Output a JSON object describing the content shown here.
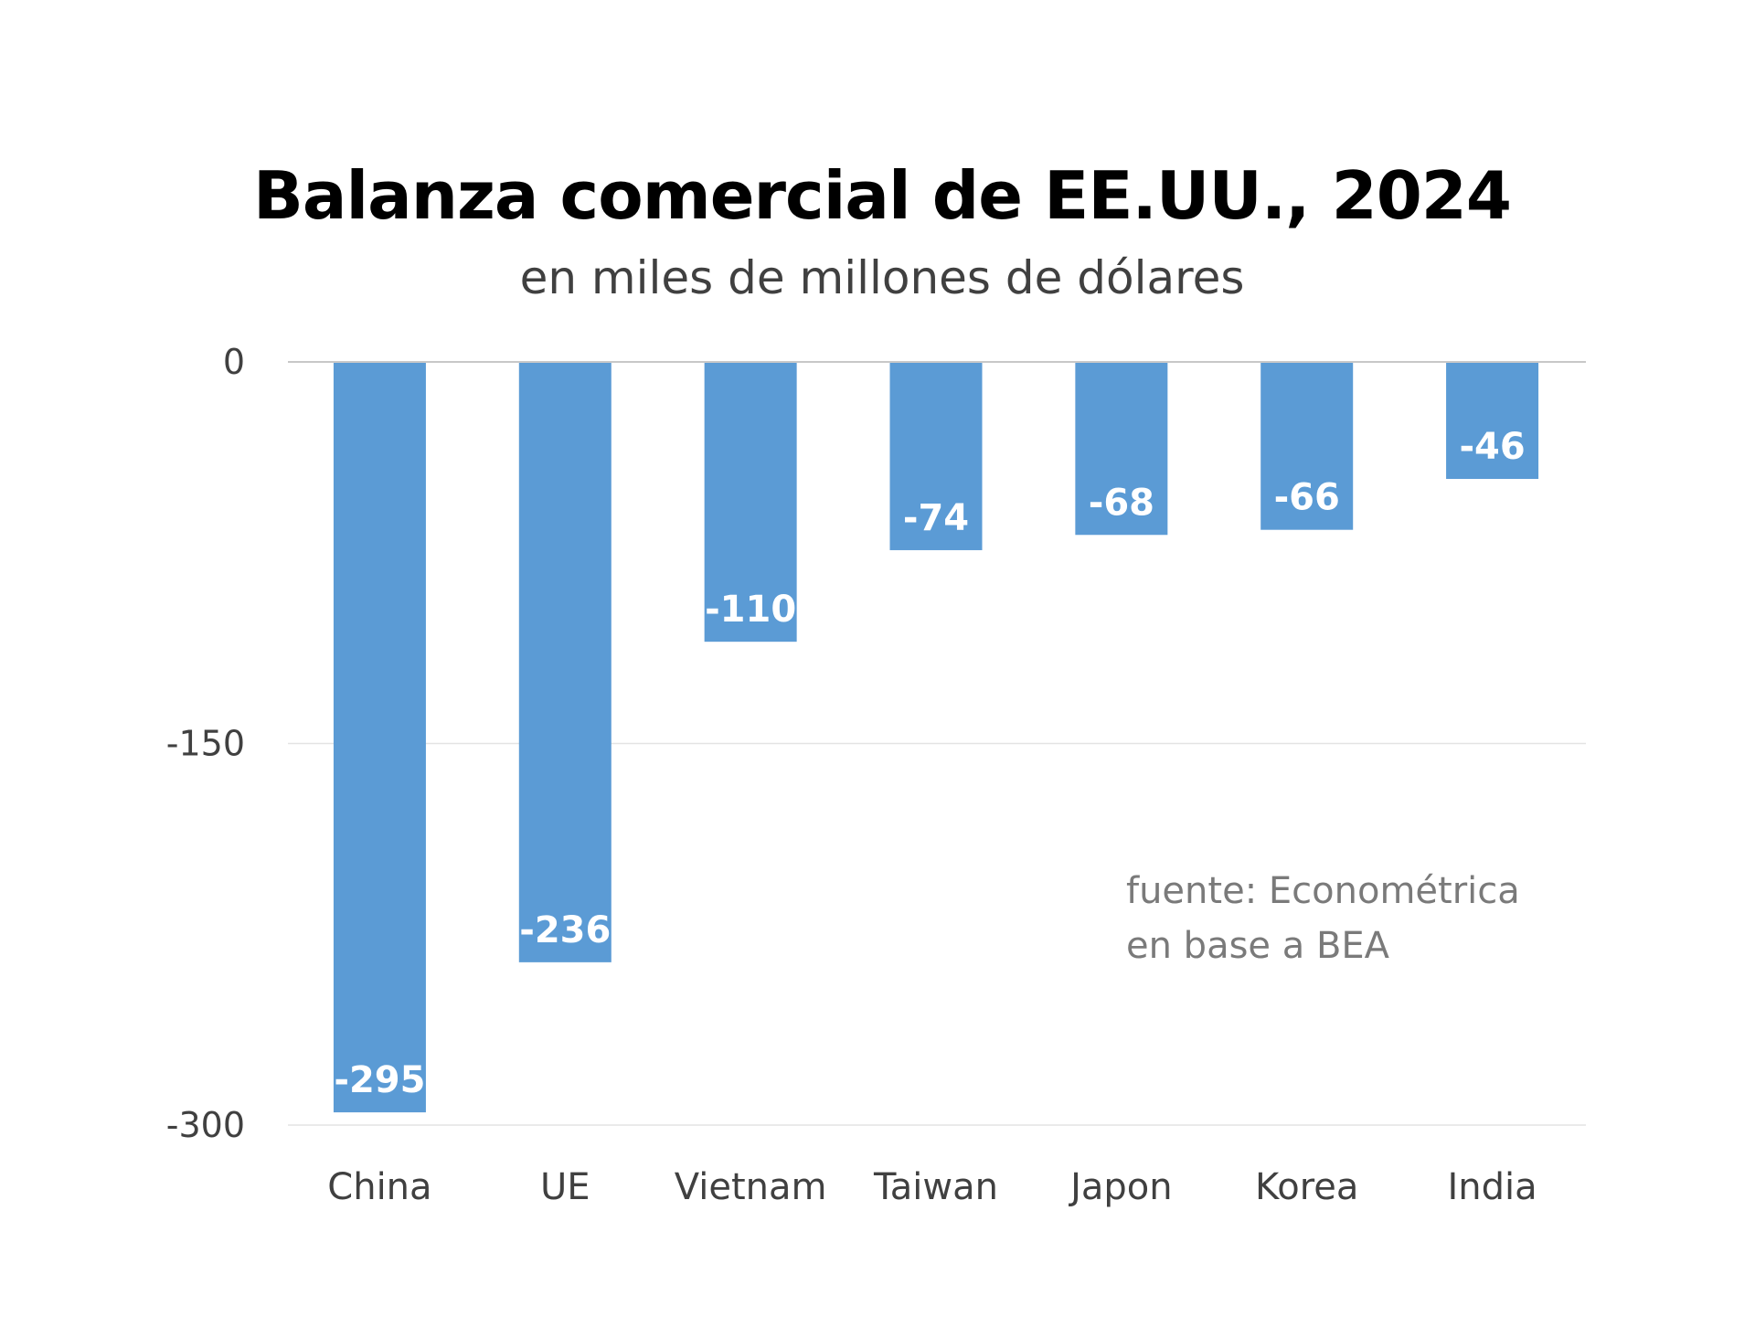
{
  "chart_data": {
    "type": "bar",
    "title": "Balanza comercial de EE.UU., 2024",
    "subtitle": "en miles de millones de dólares",
    "categories": [
      "China",
      "UE",
      "Vietnam",
      "Taiwan",
      "Japon",
      "Korea",
      "India"
    ],
    "values": [
      -295,
      -236,
      -110,
      -74,
      -68,
      -66,
      -46
    ],
    "data_labels": [
      "-295",
      "-236",
      "-110",
      "-74",
      "-68",
      "-66",
      "-46"
    ],
    "ylim": [
      -300,
      0
    ],
    "yticks": [
      0,
      -150,
      -300
    ],
    "ytick_labels": [
      "0",
      "-150",
      "-300"
    ],
    "grid": true,
    "bar_color": "#5b9bd5",
    "annotation": [
      "fuente: Econométrica",
      "en base a BEA"
    ]
  }
}
